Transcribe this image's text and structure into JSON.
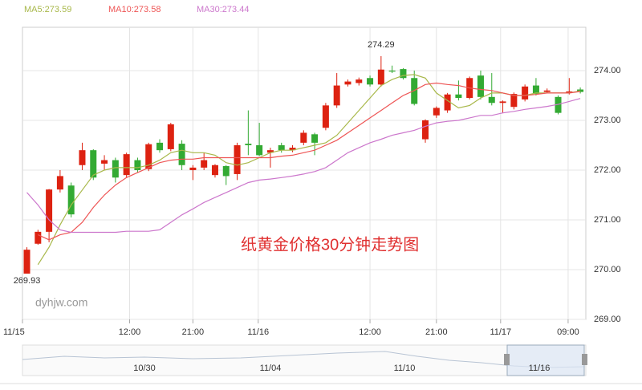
{
  "chart_data": {
    "type": "candlestick",
    "title": "纸黄金价格30分钟走势图",
    "watermark": "dyhjw.com",
    "up_color": "#dd2211",
    "down_color": "#33aa33",
    "grid": true,
    "ylim": [
      269,
      274.87
    ],
    "yticks": [
      {
        "value": 269,
        "label": "269.00"
      },
      {
        "value": 270,
        "label": "270.00"
      },
      {
        "value": 271,
        "label": "271.00"
      },
      {
        "value": 272,
        "label": "272.00"
      },
      {
        "value": 273,
        "label": "273.00"
      },
      {
        "value": 274,
        "label": "274.00"
      }
    ],
    "xlim": [
      -0.4,
      50.5
    ],
    "xticks": [
      {
        "value": -0.4,
        "label": "11/15"
      },
      {
        "value": 9.28,
        "label": "12:00"
      },
      {
        "value": 15.0,
        "label": "21:00"
      },
      {
        "value": 20.9,
        "label": "11/16"
      },
      {
        "value": 31.0,
        "label": "12:00"
      },
      {
        "value": 37.0,
        "label": "21:00"
      },
      {
        "value": 42.8,
        "label": "11/17"
      },
      {
        "value": 48.9,
        "label": "09:00"
      }
    ],
    "open": [
      269.92,
      270.52,
      270.76,
      271.61,
      271.69,
      272.1,
      272.4,
      272.13,
      272.2,
      271.9,
      272.2,
      272.02,
      272.55,
      272.42,
      272.53,
      272.0,
      272.05,
      271.9,
      272.08,
      271.92,
      272.53,
      272.5,
      272.35,
      272.5,
      272.4,
      272.55,
      272.72,
      272.85,
      273.3,
      273.72,
      273.75,
      273.85,
      273.72,
      274.0,
      274.03,
      273.85,
      272.62,
      273.1,
      273.2,
      273.52,
      273.45,
      273.9,
      273.47,
      273.35,
      273.27,
      273.42,
      273.7,
      273.57,
      273.47,
      273.55,
      273.62
    ],
    "high": [
      270.45,
      270.8,
      271.62,
      272.0,
      271.75,
      272.55,
      272.42,
      272.3,
      272.25,
      272.35,
      272.25,
      272.55,
      272.62,
      272.95,
      272.6,
      272.1,
      272.35,
      272.12,
      272.1,
      272.55,
      273.2,
      272.95,
      272.45,
      272.55,
      272.5,
      272.8,
      272.75,
      273.35,
      273.95,
      273.82,
      273.86,
      273.9,
      274.29,
      274.1,
      274.05,
      274.0,
      273.02,
      273.28,
      273.55,
      273.8,
      273.88,
      274.0,
      273.95,
      273.4,
      273.56,
      273.72,
      273.85,
      273.64,
      273.5,
      273.85,
      273.66
    ],
    "low": [
      269.93,
      270.5,
      270.55,
      271.55,
      271.05,
      272.0,
      271.8,
      272.0,
      271.75,
      271.85,
      271.95,
      271.98,
      272.35,
      272.38,
      272.0,
      271.8,
      272.0,
      271.85,
      271.7,
      271.8,
      272.3,
      272.28,
      272.05,
      272.35,
      272.36,
      272.5,
      272.3,
      272.8,
      273.25,
      273.68,
      273.7,
      273.68,
      273.68,
      273.95,
      273.82,
      273.3,
      272.55,
      273.05,
      273.15,
      273.4,
      273.42,
      273.42,
      273.3,
      273.15,
      273.22,
      273.38,
      273.5,
      273.54,
      273.12,
      273.52,
      273.54
    ],
    "close": [
      270.4,
      270.76,
      271.61,
      271.88,
      271.11,
      272.4,
      271.85,
      272.2,
      271.85,
      272.32,
      272.0,
      272.52,
      272.4,
      272.92,
      272.1,
      272.05,
      272.2,
      272.1,
      271.88,
      272.5,
      272.5,
      272.3,
      272.4,
      272.4,
      272.45,
      272.75,
      272.55,
      273.3,
      273.7,
      273.78,
      273.82,
      273.72,
      274.02,
      273.98,
      273.85,
      273.33,
      273.0,
      273.25,
      273.52,
      273.45,
      273.85,
      273.47,
      273.35,
      273.38,
      273.53,
      273.68,
      273.53,
      273.6,
      273.15,
      273.58,
      273.57
    ],
    "series": [
      {
        "name": "MA5:273.59",
        "color": "#a8b84a",
        "values": [
          null,
          270.1,
          270.45,
          270.9,
          271.3,
          271.6,
          271.9,
          272.0,
          272.05,
          272.05,
          272.05,
          272.1,
          272.2,
          272.35,
          272.4,
          272.35,
          272.35,
          272.3,
          272.15,
          272.1,
          272.15,
          272.25,
          272.35,
          272.4,
          272.4,
          272.45,
          272.5,
          272.55,
          272.7,
          272.95,
          273.2,
          273.45,
          273.7,
          273.82,
          273.9,
          273.92,
          273.85,
          273.55,
          273.4,
          273.25,
          273.3,
          273.45,
          273.55,
          273.55,
          273.5,
          273.5,
          273.55,
          273.55,
          273.55,
          273.55,
          273.59
        ]
      },
      {
        "name": "MA10:273.58",
        "color": "#ee5555",
        "values": [
          null,
          270.7,
          270.6,
          270.7,
          270.75,
          270.95,
          271.25,
          271.5,
          271.7,
          271.85,
          271.95,
          272.05,
          272.15,
          272.2,
          272.22,
          272.22,
          272.25,
          272.25,
          272.25,
          272.25,
          272.25,
          272.25,
          272.25,
          272.28,
          272.3,
          272.35,
          272.4,
          272.5,
          272.6,
          272.75,
          272.9,
          273.05,
          273.2,
          273.35,
          273.5,
          273.6,
          273.72,
          273.75,
          273.72,
          273.7,
          273.65,
          273.62,
          273.6,
          273.55,
          273.5,
          273.5,
          273.52,
          273.55,
          273.55,
          273.55,
          273.58
        ]
      },
      {
        "name": "MA30:273.44",
        "color": "#cc77cc",
        "values": [
          271.55,
          271.3,
          271.0,
          270.8,
          270.75,
          270.75,
          270.75,
          270.75,
          270.75,
          270.77,
          270.77,
          270.77,
          270.8,
          270.95,
          271.1,
          271.22,
          271.35,
          271.45,
          271.55,
          271.65,
          271.75,
          271.8,
          271.82,
          271.85,
          271.88,
          271.92,
          271.97,
          272.05,
          272.2,
          272.35,
          272.45,
          272.55,
          272.62,
          272.7,
          272.75,
          272.8,
          272.88,
          272.95,
          272.98,
          273.0,
          273.05,
          273.1,
          273.1,
          273.15,
          273.18,
          273.22,
          273.25,
          273.28,
          273.32,
          273.38,
          273.44
        ]
      }
    ],
    "navigator_labels": [
      "10/30",
      "11/04",
      "11/10",
      "11/16"
    ]
  }
}
